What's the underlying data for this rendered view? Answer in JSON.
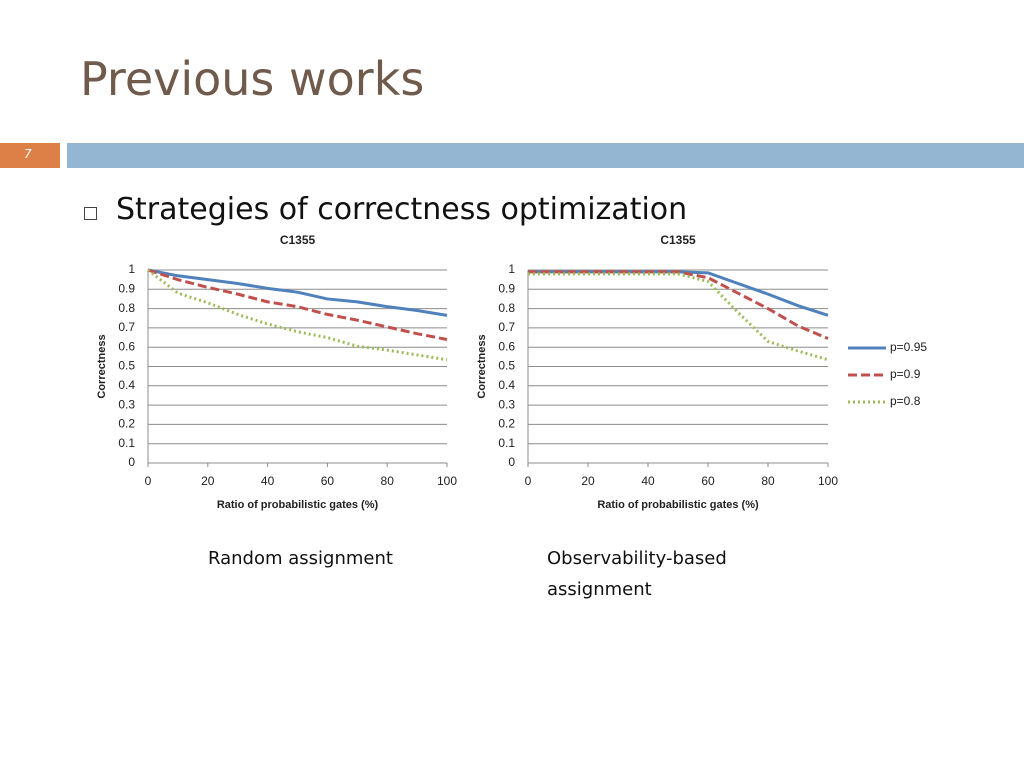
{
  "slide": {
    "title": "Previous works",
    "page_number": "7",
    "bullet": "Strategies of correctness optimization",
    "captions": [
      "Random assignment",
      "Observability-based assignment"
    ]
  },
  "chart_data": [
    {
      "type": "line",
      "title": "C1355",
      "x_label": "Ratio of probabilistic gates (%)",
      "y_label": "Correctness",
      "x": [
        0,
        10,
        20,
        30,
        40,
        50,
        60,
        70,
        80,
        90,
        100
      ],
      "xlim": [
        0,
        100
      ],
      "xticks": [
        0,
        20,
        40,
        60,
        80,
        100
      ],
      "ylim": [
        0,
        1
      ],
      "yticks": [
        0,
        0.1,
        0.2,
        0.3,
        0.4,
        0.5,
        0.6,
        0.7,
        0.8,
        0.9,
        1
      ],
      "grid": true,
      "series": [
        {
          "color": "#4f81bd",
          "style": "solid",
          "values": [
            1,
            0.97,
            0.95,
            0.93,
            0.905,
            0.885,
            0.85,
            0.835,
            0.81,
            0.79,
            0.765
          ]
        },
        {
          "color": "#c0504d",
          "style": "dashed",
          "values": [
            1,
            0.95,
            0.91,
            0.875,
            0.835,
            0.81,
            0.77,
            0.74,
            0.705,
            0.67,
            0.64
          ]
        },
        {
          "color": "#9bbb59",
          "style": "dotted",
          "values": [
            1,
            0.88,
            0.83,
            0.77,
            0.72,
            0.68,
            0.65,
            0.605,
            0.585,
            0.56,
            0.535
          ]
        }
      ]
    },
    {
      "type": "line",
      "title": "C1355",
      "x_label": "Ratio of probabilistic gates (%)",
      "y_label": "Correctness",
      "x": [
        0,
        10,
        20,
        30,
        40,
        50,
        60,
        70,
        80,
        90,
        100
      ],
      "xlim": [
        0,
        100
      ],
      "xticks": [
        0,
        20,
        40,
        60,
        80,
        100
      ],
      "ylim": [
        0,
        1
      ],
      "yticks": [
        0,
        0.1,
        0.2,
        0.3,
        0.4,
        0.5,
        0.6,
        0.7,
        0.8,
        0.9,
        1
      ],
      "grid": true,
      "legend": "right",
      "series": [
        {
          "name": "p=0.95",
          "color": "#4f81bd",
          "style": "solid",
          "values": [
            0.99,
            0.99,
            0.99,
            0.99,
            0.99,
            0.99,
            0.985,
            0.93,
            0.875,
            0.815,
            0.765
          ]
        },
        {
          "name": "p=0.9",
          "color": "#c0504d",
          "style": "dashed",
          "values": [
            0.99,
            0.99,
            0.99,
            0.99,
            0.99,
            0.99,
            0.96,
            0.88,
            0.8,
            0.71,
            0.645
          ]
        },
        {
          "name": "p=0.8",
          "color": "#9bbb59",
          "style": "dotted",
          "values": [
            0.98,
            0.98,
            0.98,
            0.98,
            0.98,
            0.98,
            0.94,
            0.78,
            0.63,
            0.58,
            0.535
          ]
        }
      ]
    }
  ]
}
